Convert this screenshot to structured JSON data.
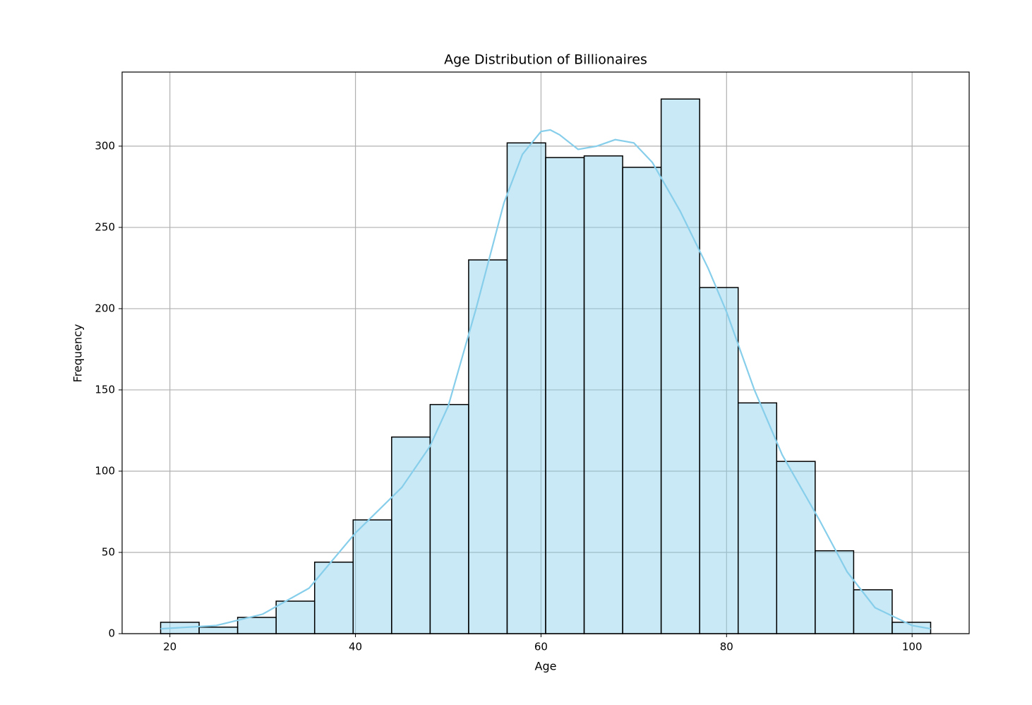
{
  "chart_data": {
    "type": "histogram",
    "title": "Age Distribution of Billionaires",
    "x_label": "Age",
    "y_label": "Frequency",
    "bins": [
      19,
      23.15,
      27.3,
      31.45,
      35.6,
      39.75,
      43.9,
      48.05,
      52.2,
      56.35,
      60.5,
      64.65,
      68.8,
      72.95,
      77.1,
      81.25,
      85.4,
      89.55,
      93.7,
      97.85,
      102
    ],
    "values": [
      7,
      4,
      10,
      20,
      44,
      70,
      121,
      141,
      230,
      302,
      293,
      294,
      287,
      329,
      213,
      142,
      106,
      51,
      27,
      7
    ],
    "color": "#87ceeb",
    "edgecolor": "#000000",
    "kde": {
      "color": "#87ceeb",
      "x": [
        19,
        25,
        30,
        35,
        40,
        45,
        48,
        50,
        53,
        56,
        58,
        60,
        61,
        62,
        64,
        66,
        68,
        70,
        72,
        75,
        78,
        80,
        83,
        86,
        90,
        93,
        96,
        100,
        102
      ],
      "values": [
        3,
        5,
        12,
        28,
        62,
        90,
        115,
        140,
        200,
        265,
        295,
        309,
        310,
        307,
        298,
        300,
        304,
        302,
        290,
        260,
        225,
        198,
        150,
        110,
        70,
        38,
        16,
        5,
        3
      ]
    },
    "xlim": [
      14.85,
      106.15
    ],
    "ylim": [
      0,
      345.6
    ],
    "xticks": [
      20,
      40,
      60,
      80,
      100
    ],
    "yticks": [
      0,
      50,
      100,
      150,
      200,
      250,
      300
    ],
    "grid": true
  }
}
